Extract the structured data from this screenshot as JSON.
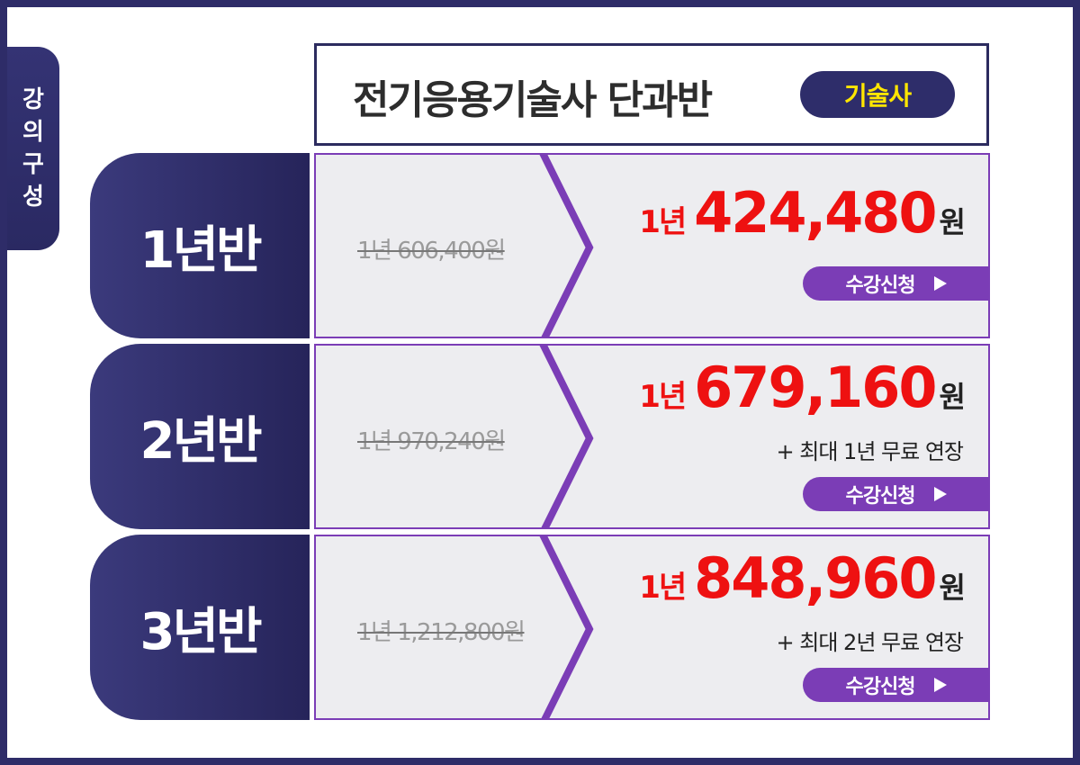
{
  "side_tab": {
    "label": "강의구성"
  },
  "header": {
    "title": "전기응용기술사 단과반",
    "badge": "기술사"
  },
  "colors": {
    "navy": "#2e2c68",
    "purple": "#7b3db6",
    "red": "#ee1111",
    "badge_text": "#ffe600"
  },
  "plans": [
    {
      "label": "1년반",
      "original_price": "1년 606,400원",
      "price_prefix": "1년",
      "price": "424,480",
      "price_unit": "원",
      "extension": "",
      "apply_label": "수강신청"
    },
    {
      "label": "2년반",
      "original_price": "1년 970,240원",
      "price_prefix": "1년",
      "price": "679,160",
      "price_unit": "원",
      "extension": "+ 최대 1년 무료 연장",
      "apply_label": "수강신청"
    },
    {
      "label": "3년반",
      "original_price": "1년 1,212,800원",
      "price_prefix": "1년",
      "price": "848,960",
      "price_unit": "원",
      "extension": "+ 최대 2년 무료 연장",
      "apply_label": "수강신청"
    }
  ]
}
